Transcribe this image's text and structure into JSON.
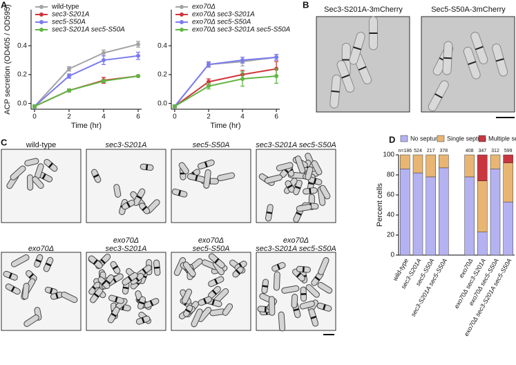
{
  "panel_labels": [
    "A",
    "B",
    "C",
    "D"
  ],
  "chart_data": [
    {
      "type": "line",
      "ylabel": "ACP secretion (OD405 / OD595)",
      "xlabel": "Time (hr)",
      "x": [
        0,
        2,
        4,
        6
      ],
      "xlim": [
        -0.2,
        6.2
      ],
      "xticks": [
        0,
        2,
        4,
        6
      ],
      "ylim": [
        -0.04,
        0.65
      ],
      "yticks": [
        {
          "value": 0,
          "label": "0.0"
        },
        0.2,
        0.4
      ],
      "legend": "upper-left",
      "series": [
        {
          "name": "wild-type",
          "color": "#a3a3a3",
          "values": [
            -0.02,
            0.24,
            0.35,
            0.41
          ],
          "errors": [
            0.01,
            0.015,
            0.02,
            0.02
          ]
        },
        {
          "name": "sec3-S201A",
          "color": "#d1343b",
          "values": [
            -0.02,
            0.09,
            0.16,
            0.19
          ],
          "errors": [
            0.01,
            0.01,
            0.02,
            0.005
          ]
        },
        {
          "name": "sec5-S50A",
          "color": "#7b7bf0",
          "values": [
            -0.02,
            0.19,
            0.3,
            0.33
          ],
          "errors": [
            0.01,
            0.015,
            0.03,
            0.025
          ]
        },
        {
          "name": "sec3-S201A sec5-S50A",
          "color": "#62b545",
          "values": [
            -0.02,
            0.09,
            0.155,
            0.19
          ],
          "errors": [
            0.01,
            0.01,
            0.01,
            0.005
          ]
        }
      ]
    },
    {
      "type": "line",
      "xlabel": "Time (hr)",
      "x": [
        0,
        2,
        4,
        6
      ],
      "xlim": [
        -0.2,
        6.2
      ],
      "xticks": [
        0,
        2,
        4,
        6
      ],
      "ylim": [
        -0.04,
        0.65
      ],
      "yticks": [
        {
          "value": 0,
          "label": "0.0"
        },
        0.2,
        0.4
      ],
      "legend": "upper-left",
      "series": [
        {
          "name": "exo70Δ",
          "color": "#a3a3a3",
          "values": [
            -0.02,
            0.27,
            0.29,
            0.32
          ],
          "errors": [
            0.01,
            0.02,
            0.03,
            0.02
          ]
        },
        {
          "name": "exo70Δ sec3-S201A",
          "color": "#d1343b",
          "values": [
            -0.02,
            0.15,
            0.2,
            0.24
          ],
          "errors": [
            0.01,
            0.02,
            0.03,
            0.05
          ]
        },
        {
          "name": "exo70Δ sec5-S50A",
          "color": "#7b7bf0",
          "values": [
            -0.02,
            0.27,
            0.3,
            0.32
          ],
          "errors": [
            0.01,
            0.015,
            0.02,
            0.02
          ]
        },
        {
          "name": "exo70Δ sec3-S201A sec5-S50A",
          "color": "#62b545",
          "values": [
            -0.02,
            0.12,
            0.17,
            0.19
          ],
          "errors": [
            0.01,
            0.02,
            0.05,
            0.05
          ]
        }
      ]
    },
    {
      "type": "stacked-bar",
      "ylabel": "Percent cells",
      "ylim": [
        0,
        100
      ],
      "yticks": [
        0,
        20,
        40,
        60,
        80,
        100
      ],
      "legend": "top",
      "categories": [
        "wild-type",
        "sec3-S201A",
        "sec5-S50A",
        "sec3-S201A sec5-S50A",
        null,
        "exo70Δ",
        "exo70Δ sec3-S201A",
        "exo70Δ sec5-S50A",
        "exo70Δ sec3-S201A sec5-S50A"
      ],
      "n_labels": [
        "n=186",
        "524",
        "217",
        "378",
        null,
        "408",
        "347",
        "312",
        "599"
      ],
      "series": [
        {
          "name": "No septum",
          "color": "#b5b2f2",
          "values": [
            86,
            82,
            78,
            87,
            null,
            78,
            23,
            86,
            53
          ]
        },
        {
          "name": "Single septum",
          "color": "#e8b573",
          "values": [
            14,
            18,
            22,
            13,
            null,
            22,
            51,
            14,
            39
          ]
        },
        {
          "name": "Multiple septa",
          "color": "#c9363e",
          "values": [
            0,
            0,
            0,
            0,
            null,
            0,
            26,
            0,
            8
          ]
        }
      ]
    }
  ],
  "panel_b": {
    "images": [
      "Sec3-S201A-3mCherry",
      "Sec5-S50A-3mCherry"
    ]
  },
  "panel_c": {
    "images": [
      [
        "wild-type"
      ],
      [
        "sec3-S201A"
      ],
      [
        "sec5-S50A"
      ],
      [
        "sec3-S201A sec5-S50A"
      ],
      [
        "exo70Δ"
      ],
      [
        "exo70Δ",
        "sec3-S201A"
      ],
      [
        "exo70Δ",
        "sec5-S50A"
      ],
      [
        "exo70Δ",
        "sec3-S201A sec5-S50A"
      ]
    ]
  }
}
